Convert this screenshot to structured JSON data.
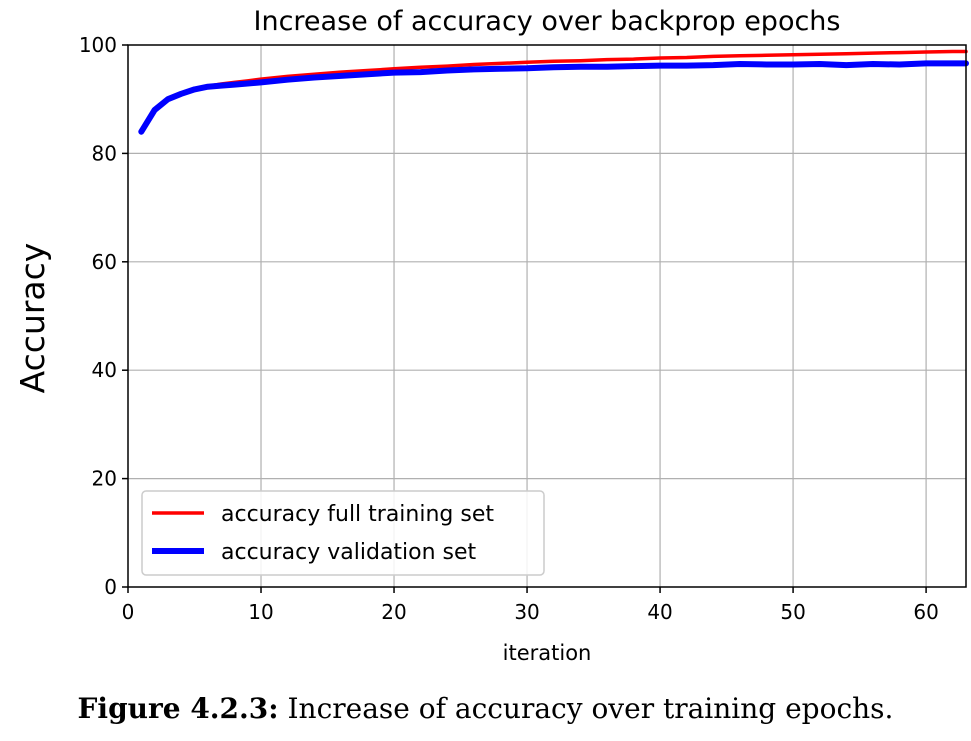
{
  "chart_data": {
    "type": "line",
    "title": "Increase of accuracy over backprop epochs",
    "xlabel": "iteration",
    "ylabel": "Accuracy",
    "xlim": [
      0,
      63
    ],
    "ylim": [
      0,
      100
    ],
    "xticks": [
      0,
      10,
      20,
      30,
      40,
      50,
      60
    ],
    "yticks": [
      0,
      20,
      40,
      60,
      80,
      100
    ],
    "grid": true,
    "legend_position": "lower-left",
    "series": [
      {
        "name": "accuracy full training set",
        "color": "#ff0000",
        "x": [
          1,
          2,
          3,
          4,
          5,
          6,
          7,
          8,
          9,
          10,
          12,
          14,
          16,
          18,
          20,
          22,
          24,
          26,
          28,
          30,
          32,
          34,
          36,
          38,
          40,
          42,
          44,
          46,
          48,
          50,
          52,
          54,
          56,
          58,
          60,
          62,
          63
        ],
        "values": [
          84.0,
          88.0,
          90.0,
          91.0,
          91.8,
          92.4,
          92.8,
          93.1,
          93.4,
          93.7,
          94.2,
          94.6,
          95.0,
          95.3,
          95.6,
          95.9,
          96.1,
          96.4,
          96.6,
          96.8,
          97.0,
          97.1,
          97.3,
          97.4,
          97.6,
          97.7,
          97.9,
          98.0,
          98.1,
          98.2,
          98.3,
          98.4,
          98.5,
          98.6,
          98.7,
          98.8,
          98.8
        ]
      },
      {
        "name": "accuracy validation set",
        "color": "#0000ff",
        "x": [
          1,
          2,
          3,
          4,
          5,
          6,
          7,
          8,
          9,
          10,
          12,
          14,
          16,
          18,
          20,
          22,
          24,
          26,
          28,
          30,
          32,
          34,
          36,
          38,
          40,
          42,
          44,
          46,
          48,
          50,
          52,
          54,
          56,
          58,
          60,
          62,
          63
        ],
        "values": [
          84.0,
          88.0,
          90.0,
          91.0,
          91.8,
          92.3,
          92.5,
          92.7,
          92.9,
          93.1,
          93.6,
          94.0,
          94.3,
          94.6,
          94.9,
          95.0,
          95.3,
          95.5,
          95.6,
          95.7,
          95.9,
          96.0,
          96.0,
          96.1,
          96.2,
          96.2,
          96.3,
          96.5,
          96.4,
          96.4,
          96.5,
          96.3,
          96.5,
          96.4,
          96.6,
          96.6,
          96.6
        ]
      }
    ]
  },
  "caption": {
    "label": "Figure 4.2.3:",
    "text": " Increase of accuracy over training epochs."
  }
}
